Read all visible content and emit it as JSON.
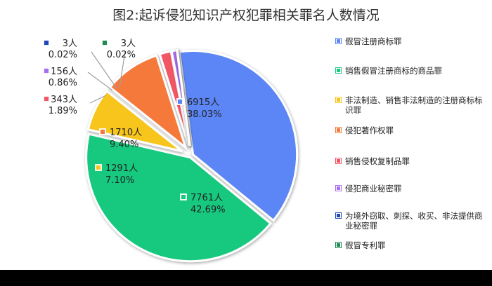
{
  "chart_data": {
    "type": "pie",
    "title": "图2:起诉侵犯知识产权犯罪相关罪名人数情况",
    "slices": [
      {
        "name": "假冒注册商标罪",
        "value": 6915,
        "count_label": "6915人",
        "percent_label": "38.03%",
        "color": "#5b86f5"
      },
      {
        "name": "销售假冒注册商标的商品罪",
        "value": 7761,
        "count_label": "7761人",
        "percent_label": "42.69%",
        "color": "#18c97f"
      },
      {
        "name": "非法制造、销售非法制造的注册商标标识罪",
        "value": 1291,
        "count_label": "1291人",
        "percent_label": "7.10%",
        "color": "#f7c51b"
      },
      {
        "name": "侵犯著作权罪",
        "value": 1710,
        "count_label": "1710人",
        "percent_label": "9.40%",
        "color": "#f5793b"
      },
      {
        "name": "销售侵权复制品罪",
        "value": 343,
        "count_label": "343人",
        "percent_label": "1.89%",
        "color": "#f25563"
      },
      {
        "name": "侵犯商业秘密罪",
        "value": 156,
        "count_label": "156人",
        "percent_label": "0.86%",
        "color": "#a66ef2"
      },
      {
        "name": "为境外窃取、刺探、收买、非法提供商业秘密罪",
        "value": 3,
        "count_label": "3人",
        "percent_label": "0.02%",
        "color": "#1f47b8"
      },
      {
        "name": "假冒专利罪",
        "value": 3,
        "count_label": "3人",
        "percent_label": "0.02%",
        "color": "#1f8a52"
      }
    ],
    "legend_position": "right"
  }
}
